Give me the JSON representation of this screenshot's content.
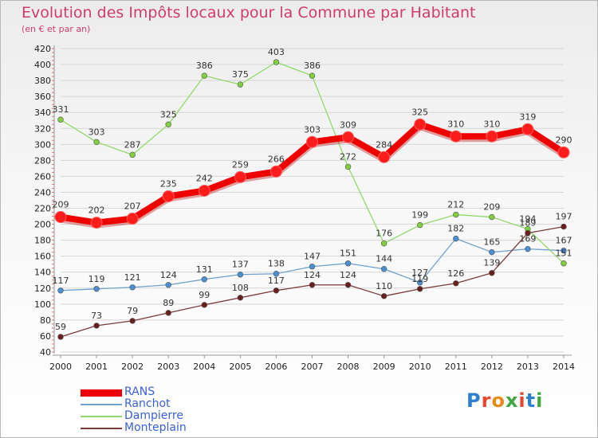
{
  "title": "Evolution des Impôts locaux pour la Commune par Habitant",
  "subtitle": "(en € et par an)",
  "logo": {
    "text": "Proxiti",
    "letter_colors": [
      "#2f7fd1",
      "#e8472d",
      "#e68a1a",
      "#3fa640",
      "#e8472d",
      "#2f7fd1",
      "#3fa640"
    ]
  },
  "chart_data": {
    "type": "line",
    "title": "Evolution des Impôts locaux pour la Commune par Habitant",
    "subtitle": "(en € et par an)",
    "xlabel": "",
    "ylabel": "",
    "x": [
      "2000",
      "2001",
      "2002",
      "2003",
      "2004",
      "2005",
      "2006",
      "2007",
      "2008",
      "2009",
      "2010",
      "2011",
      "2012",
      "2013",
      "2014"
    ],
    "ylim": [
      40,
      420
    ],
    "y_tick_step": 20,
    "grid": true,
    "legend_position": "bottom-left",
    "series": [
      {
        "name": "RANS",
        "color": "#ee0000",
        "point_color": "#ff1c1c",
        "bold": true,
        "values": [
          209,
          202,
          207,
          235,
          242,
          259,
          266,
          303,
          309,
          284,
          325,
          310,
          310,
          319,
          290
        ]
      },
      {
        "name": "Ranchot",
        "color": "#6fa1cc",
        "point_color": "#4b8fd0",
        "bold": false,
        "values": [
          117,
          119,
          121,
          124,
          131,
          137,
          138,
          147,
          151,
          144,
          127,
          182,
          165,
          169,
          167
        ]
      },
      {
        "name": "Dampierre",
        "color": "#93d86d",
        "point_color": "#7fcf3f",
        "bold": false,
        "values": [
          331,
          303,
          287,
          325,
          386,
          375,
          403,
          386,
          272,
          176,
          199,
          212,
          209,
          194,
          151
        ]
      },
      {
        "name": "Monteplain",
        "color": "#7a3a3a",
        "point_color": "#6a1f1f",
        "bold": false,
        "values": [
          59,
          73,
          79,
          89,
          99,
          108,
          117,
          124,
          124,
          110,
          119,
          126,
          139,
          189,
          197
        ]
      }
    ]
  }
}
